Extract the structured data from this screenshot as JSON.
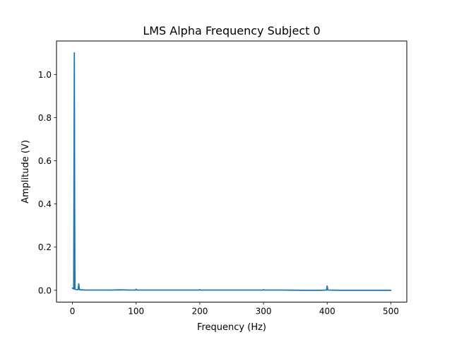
{
  "chart_data": {
    "type": "line",
    "title": "LMS Alpha Frequency Subject 0",
    "xlabel": "Frequency (Hz)",
    "ylabel": "Amplitude (V)",
    "xlim": [
      -25,
      525
    ],
    "ylim": [
      -0.055,
      1.155
    ],
    "x_ticks": [
      0,
      100,
      200,
      300,
      400,
      500
    ],
    "x_tick_labels": [
      "0",
      "100",
      "200",
      "300",
      "400",
      "500"
    ],
    "y_ticks": [
      0.0,
      0.2,
      0.4,
      0.6,
      0.8,
      1.0
    ],
    "y_tick_labels": [
      "0.0",
      "0.2",
      "0.4",
      "0.6",
      "0.8",
      "1.0"
    ],
    "grid": false,
    "series": [
      {
        "color": "#1f77b4",
        "x": [
          0,
          1,
          2,
          2.5,
          3,
          3.5,
          4,
          5,
          7,
          9,
          9.5,
          10,
          10.5,
          11,
          13,
          15,
          20,
          40,
          60,
          75,
          90,
          99,
          100,
          101,
          120,
          150,
          180,
          199,
          200,
          201,
          230,
          260,
          290,
          299,
          300,
          301,
          330,
          360,
          390,
          399,
          400,
          401,
          420,
          440,
          470,
          500
        ],
        "y": [
          0.01,
          0.008,
          0.006,
          0.55,
          1.1,
          0.4,
          0.005,
          0.004,
          0.003,
          0.003,
          0.02,
          0.03,
          0.015,
          0.003,
          0.002,
          0.002,
          0.001,
          0.001,
          0.001,
          0.002,
          0.001,
          0.001,
          0.005,
          0.001,
          0.001,
          0.001,
          0.001,
          0.001,
          0.003,
          0.001,
          0.001,
          0.001,
          0.001,
          0.001,
          0.003,
          0.001,
          0.001,
          0.0,
          0.0,
          0.001,
          0.02,
          0.001,
          0.0,
          0.0,
          0.0,
          0.0
        ]
      }
    ]
  }
}
